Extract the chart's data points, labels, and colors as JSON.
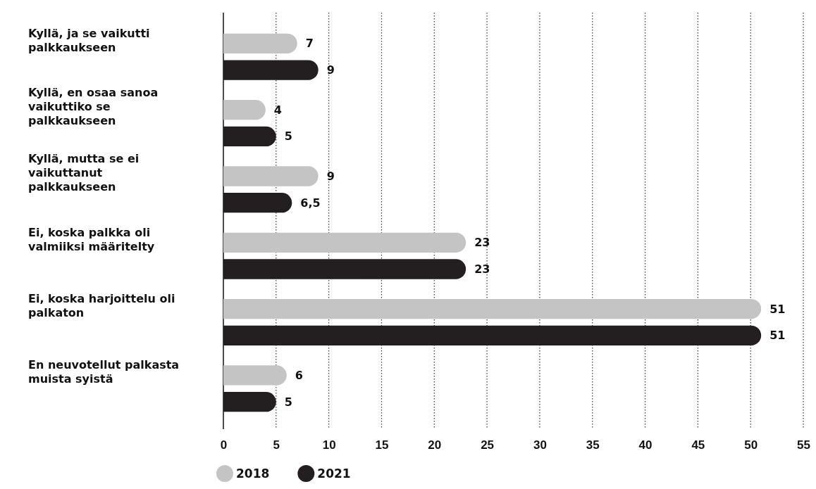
{
  "chart_data": {
    "type": "bar",
    "orientation": "horizontal",
    "categories": [
      "Kyllä, ja se vaikutti palkkaukseen",
      "Kyllä, en osaa sanoa vaikuttiko se palkkaukseen",
      "Kyllä, mutta se ei vaikuttanut palkkaukseen",
      "Ei, koska palkka oli valmiiksi määritelty",
      "Ei, koska harjoittelu oli palkaton",
      "En neuvotellut palkasta muista syistä"
    ],
    "series": [
      {
        "name": "2018",
        "color": "#c4c4c4",
        "values": [
          7,
          4,
          9,
          23,
          51,
          6
        ],
        "value_labels": [
          "7",
          "4",
          "9",
          "23",
          "51",
          "6"
        ]
      },
      {
        "name": "2021",
        "color": "#231f20",
        "values": [
          9,
          5,
          6.5,
          23,
          51,
          5
        ],
        "value_labels": [
          "9",
          "5",
          "6,5",
          "23",
          "51",
          "5"
        ]
      }
    ],
    "xlim": [
      0,
      55
    ],
    "xticks": [
      0,
      5,
      10,
      15,
      20,
      25,
      30,
      35,
      40,
      45,
      50,
      55
    ],
    "grid": "x",
    "legend": "bottom"
  }
}
